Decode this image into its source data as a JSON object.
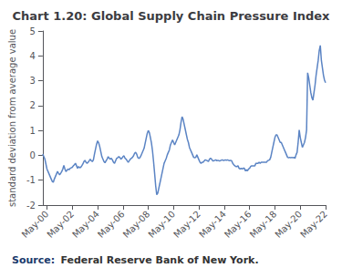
{
  "chart_data": {
    "type": "line",
    "title": "Chart 1.20: Global Supply Chain Pressure Index",
    "ylabel": "standard deviation from average value",
    "annotations": [
      "Source:",
      "Federal Reserve Bank of New York."
    ],
    "color": "#5b84c4",
    "ylim": [
      -2,
      5
    ],
    "yticks": [
      -2,
      -1,
      0,
      1,
      2,
      3,
      4,
      5
    ],
    "grid": false,
    "categories": [
      null,
      null,
      null,
      null,
      "May-00",
      null,
      null,
      null,
      null,
      null,
      null,
      null,
      null,
      null,
      null,
      null,
      null,
      null,
      null,
      null,
      null,
      null,
      null,
      null,
      null,
      null,
      null,
      null,
      "May-02",
      null,
      null,
      null,
      null,
      null,
      null,
      null,
      null,
      null,
      null,
      null,
      null,
      null,
      null,
      null,
      null,
      null,
      null,
      null,
      null,
      null,
      null,
      null,
      "May-04",
      null,
      null,
      null,
      null,
      null,
      null,
      null,
      null,
      null,
      null,
      null,
      null,
      null,
      null,
      null,
      null,
      null,
      null,
      null,
      null,
      null,
      null,
      null,
      "May-06",
      null,
      null,
      null,
      null,
      null,
      null,
      null,
      null,
      null,
      null,
      null,
      null,
      null,
      null,
      null,
      null,
      null,
      null,
      null,
      null,
      null,
      null,
      null,
      "May-08",
      null,
      null,
      null,
      null,
      null,
      null,
      null,
      null,
      null,
      null,
      null,
      null,
      null,
      null,
      null,
      null,
      null,
      null,
      null,
      null,
      null,
      null,
      null,
      "May-10",
      null,
      null,
      null,
      null,
      null,
      null,
      null,
      null,
      null,
      null,
      null,
      null,
      null,
      null,
      null,
      null,
      null,
      null,
      null,
      null,
      null,
      null,
      null,
      "May-12",
      null,
      null,
      null,
      null,
      null,
      null,
      null,
      null,
      null,
      null,
      null,
      null,
      null,
      null,
      null,
      null,
      null,
      null,
      null,
      null,
      null,
      null,
      null,
      "May-14",
      null,
      null,
      null,
      null,
      null,
      null,
      null,
      null,
      null,
      null,
      null,
      null,
      null,
      null,
      null,
      null,
      null,
      null,
      null,
      null,
      null,
      null,
      null,
      "May-16",
      null,
      null,
      null,
      null,
      null,
      null,
      null,
      null,
      null,
      null,
      null,
      null,
      null,
      null,
      null,
      null,
      null,
      null,
      null,
      null,
      null,
      null,
      null,
      "May-18",
      null,
      null,
      null,
      null,
      null,
      null,
      null,
      null,
      null,
      null,
      null,
      null,
      null,
      null,
      null,
      null,
      null,
      null,
      null,
      null,
      null,
      null,
      null,
      "May-20",
      null,
      null,
      null,
      null,
      null,
      null,
      null,
      null,
      null,
      null,
      null,
      null,
      null,
      null,
      null,
      null,
      null,
      null,
      null,
      null,
      null,
      null,
      null,
      "May-22"
    ],
    "values": [
      0.05,
      -0.05,
      -0.15,
      -0.35,
      -0.55,
      -0.65,
      -0.75,
      -0.85,
      -0.95,
      -1.05,
      -1.08,
      -0.95,
      -0.85,
      -0.75,
      -0.65,
      -0.72,
      -0.78,
      -0.72,
      -0.65,
      -0.55,
      -0.4,
      -0.55,
      -0.65,
      -0.6,
      -0.55,
      -0.58,
      -0.52,
      -0.5,
      -0.48,
      -0.42,
      -0.38,
      -0.32,
      -0.42,
      -0.52,
      -0.45,
      -0.5,
      -0.48,
      -0.42,
      -0.35,
      -0.25,
      -0.2,
      -0.28,
      -0.32,
      -0.28,
      -0.22,
      -0.15,
      -0.22,
      -0.25,
      -0.18,
      0.05,
      0.25,
      0.45,
      0.58,
      0.5,
      0.35,
      0.15,
      -0.05,
      -0.15,
      -0.25,
      -0.3,
      -0.22,
      -0.15,
      -0.05,
      -0.12,
      -0.15,
      -0.12,
      -0.18,
      -0.28,
      -0.32,
      -0.22,
      -0.12,
      -0.1,
      -0.05,
      -0.08,
      -0.15,
      -0.12,
      -0.05,
      -0.02,
      -0.12,
      -0.15,
      -0.22,
      -0.28,
      -0.22,
      -0.15,
      -0.12,
      -0.08,
      -0.02,
      0.08,
      0.12,
      0.05,
      -0.08,
      -0.12,
      -0.1,
      -0.02,
      0.08,
      0.18,
      0.28,
      0.48,
      0.68,
      0.88,
      1.0,
      0.92,
      0.72,
      0.5,
      0.18,
      -0.25,
      -0.72,
      -1.22,
      -1.58,
      -1.52,
      -1.32,
      -1.12,
      -0.92,
      -0.72,
      -0.52,
      -0.32,
      -0.22,
      -0.12,
      0.02,
      0.12,
      0.22,
      0.42,
      0.52,
      0.62,
      0.52,
      0.42,
      0.52,
      0.62,
      0.72,
      0.82,
      1.02,
      1.32,
      1.55,
      1.45,
      1.25,
      1.05,
      0.85,
      0.65,
      0.52,
      0.32,
      0.22,
      0.12,
      0.02,
      -0.08,
      -0.1,
      -0.08,
      0.02,
      -0.08,
      -0.18,
      -0.28,
      -0.32,
      -0.28,
      -0.28,
      -0.22,
      -0.18,
      -0.2,
      -0.22,
      -0.25,
      -0.15,
      -0.12,
      -0.15,
      -0.22,
      -0.22,
      -0.2,
      -0.18,
      -0.22,
      -0.2,
      -0.22,
      -0.22,
      -0.2,
      -0.18,
      -0.2,
      -0.2,
      -0.18,
      -0.2,
      -0.18,
      -0.2,
      -0.22,
      -0.2,
      -0.22,
      -0.32,
      -0.38,
      -0.42,
      -0.45,
      -0.45,
      -0.42,
      -0.52,
      -0.55,
      -0.52,
      -0.55,
      -0.52,
      -0.52,
      -0.62,
      -0.58,
      -0.62,
      -0.55,
      -0.52,
      -0.45,
      -0.42,
      -0.42,
      -0.42,
      -0.42,
      -0.32,
      -0.32,
      -0.32,
      -0.28,
      -0.32,
      -0.28,
      -0.28,
      -0.28,
      -0.28,
      -0.28,
      -0.28,
      -0.22,
      -0.2,
      -0.18,
      -0.08,
      0.12,
      0.32,
      0.52,
      0.72,
      0.82,
      0.82,
      0.72,
      0.62,
      0.52,
      0.52,
      0.42,
      0.32,
      0.22,
      0.12,
      0.02,
      -0.08,
      -0.1,
      -0.08,
      -0.1,
      -0.08,
      -0.1,
      -0.08,
      -0.12,
      0.02,
      0.12,
      0.52,
      1.02,
      0.72,
      0.52,
      0.32,
      0.42,
      0.52,
      0.72,
      1.02,
      3.32,
      3.12,
      2.82,
      2.52,
      2.32,
      2.22,
      2.52,
      2.82,
      3.22,
      3.52,
      3.82,
      4.22,
      4.42,
      3.82,
      3.52,
      3.22,
      3.02,
      2.92
    ]
  }
}
